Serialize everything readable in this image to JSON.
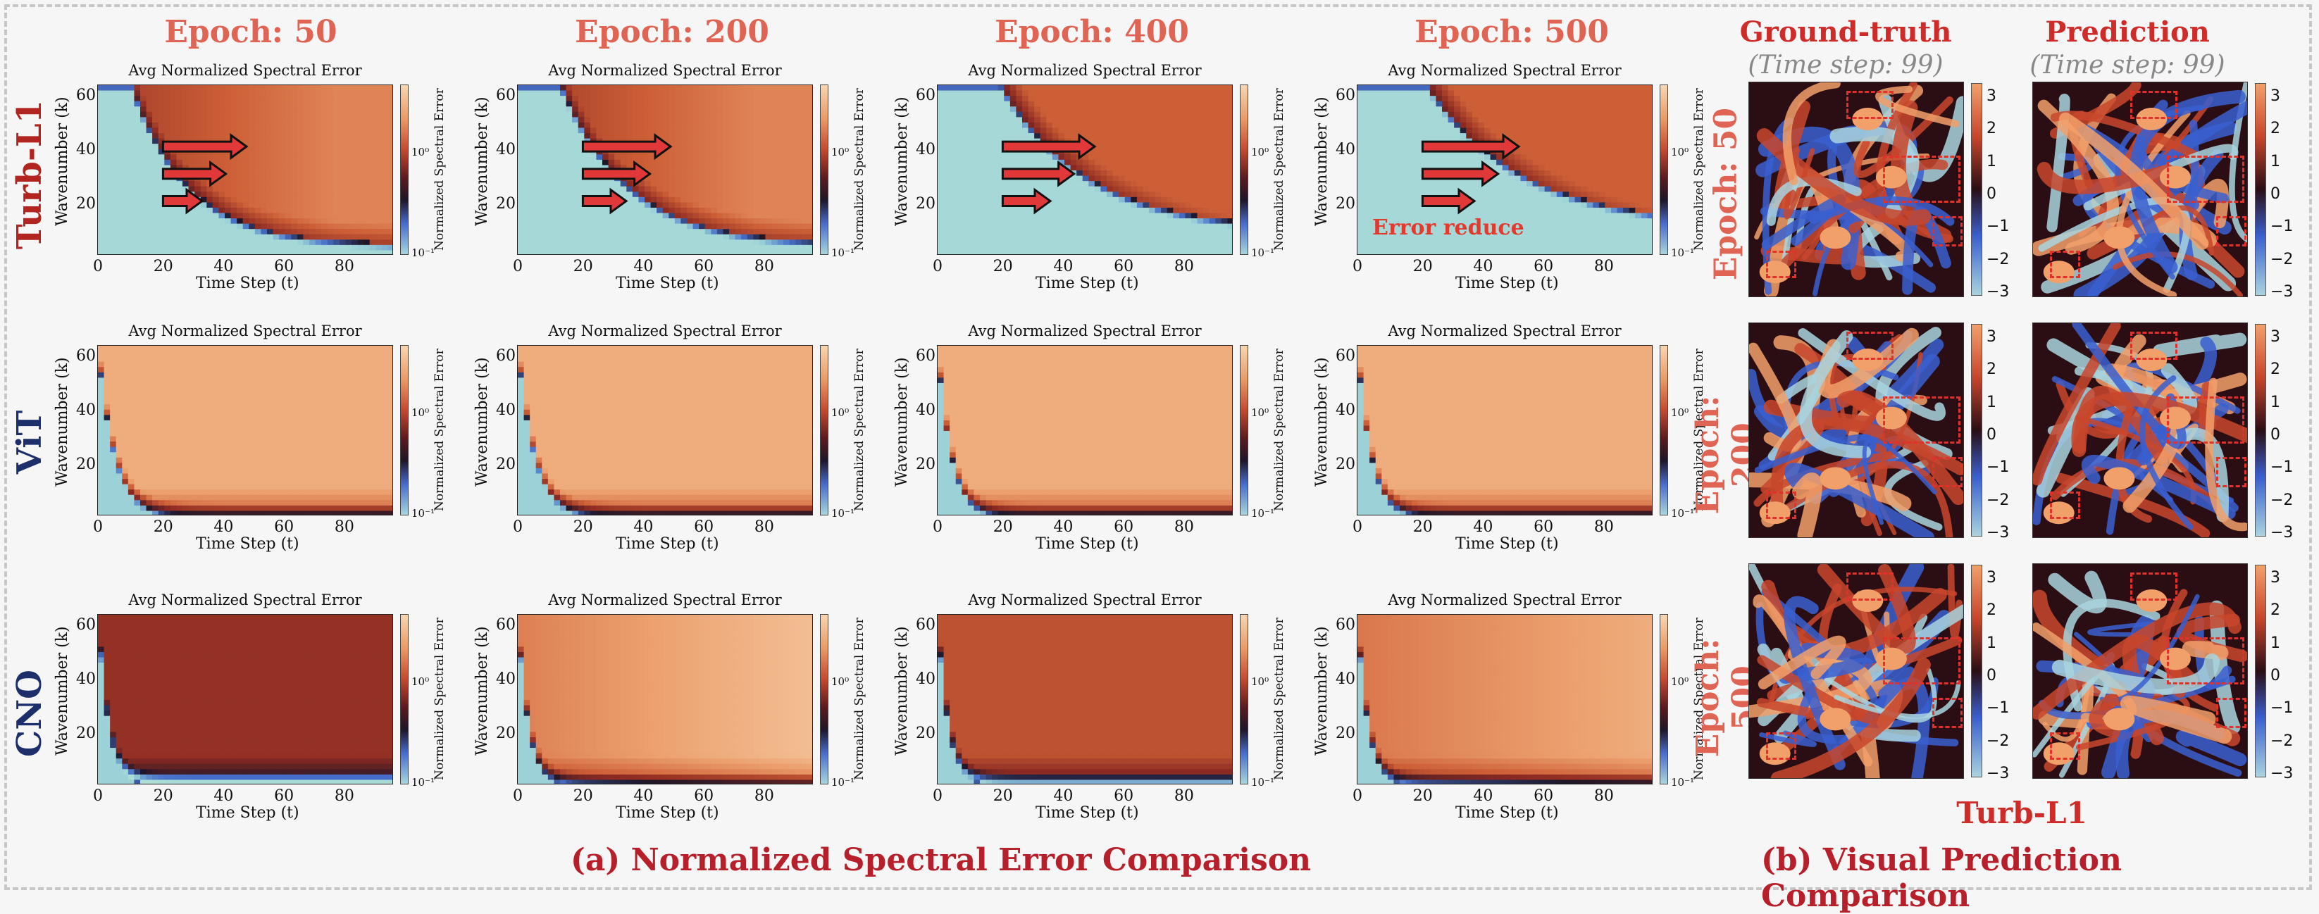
{
  "epochs": [
    "Epoch: 50",
    "Epoch: 200",
    "Epoch: 400",
    "Epoch: 500"
  ],
  "models": [
    {
      "name": "Turb-L1",
      "color": "#b2241f"
    },
    {
      "name": "ViT",
      "color": "#1c2f6b"
    },
    {
      "name": "CNO",
      "color": "#1c2f6b"
    }
  ],
  "chart_data": {
    "type": "heatmap",
    "title": "Avg Normalized Spectral Error",
    "xlabel": "Time Step (t)",
    "ylabel": "Wavenumber (k)",
    "colorbar_label": "Normalized Spectral Error",
    "colorbar_ticks": [
      "10⁰",
      "10⁻¹"
    ],
    "xlim": [
      0,
      98
    ],
    "ylim": [
      1,
      64
    ],
    "xticks": [
      "0",
      "20",
      "40",
      "60",
      "80"
    ],
    "yticks": [
      "20",
      "40",
      "60"
    ],
    "panels": [
      {
        "model": "Turb-L1",
        "epoch": 50,
        "boundary_k_at_t0": 64,
        "boundary_t_at_k64": 20,
        "boundary_k_at_t98": 5
      },
      {
        "model": "Turb-L1",
        "epoch": 200,
        "boundary_k_at_t0": 64,
        "boundary_t_at_k64": 26,
        "boundary_k_at_t98": 5
      },
      {
        "model": "Turb-L1",
        "epoch": 400,
        "boundary_k_at_t0": 64,
        "boundary_t_at_k64": 38,
        "boundary_k_at_t98": 10
      },
      {
        "model": "Turb-L1",
        "epoch": 500,
        "boundary_k_at_t0": 64,
        "boundary_t_at_k64": 42,
        "boundary_k_at_t98": 12
      },
      {
        "model": "ViT",
        "epoch": 50,
        "boundary_k_at_t0": 64,
        "boundary_t_at_k64": 4,
        "boundary_k_at_t98": 1
      },
      {
        "model": "ViT",
        "epoch": 200,
        "boundary_k_at_t0": 64,
        "boundary_t_at_k64": 4,
        "boundary_k_at_t98": 1
      },
      {
        "model": "ViT",
        "epoch": 400,
        "boundary_k_at_t0": 64,
        "boundary_t_at_k64": 3,
        "boundary_k_at_t98": 1
      },
      {
        "model": "ViT",
        "epoch": 500,
        "boundary_k_at_t0": 64,
        "boundary_t_at_k64": 3,
        "boundary_k_at_t98": 1
      },
      {
        "model": "CNO",
        "epoch": 50,
        "boundary_k_at_t0": 64,
        "boundary_t_at_k64": 2,
        "boundary_k_at_t98": 1
      },
      {
        "model": "CNO",
        "epoch": 200,
        "boundary_k_at_t0": 64,
        "boundary_t_at_k64": 2,
        "boundary_k_at_t98": 1
      },
      {
        "model": "CNO",
        "epoch": 400,
        "boundary_k_at_t0": 64,
        "boundary_t_at_k64": 2,
        "boundary_k_at_t98": 1
      },
      {
        "model": "CNO",
        "epoch": 500,
        "boundary_k_at_t0": 64,
        "boundary_t_at_k64": 2,
        "boundary_k_at_t98": 1
      }
    ]
  },
  "annotation": "Error reduce",
  "caption_a": "(a) Normalized Spectral Error Comparison",
  "caption_b": "(b) Visual Prediction Comparison",
  "visual": {
    "col_titles": [
      "Ground-truth",
      "Prediction"
    ],
    "col_subtitles": [
      "(Time step: 99)",
      "(Time step: 99)"
    ],
    "row_labels": [
      "Epoch: 50",
      "Epoch: 200",
      "Epoch: 500"
    ],
    "model_label": "Turb-L1",
    "colorbar_ticks": [
      "3",
      "2",
      "1",
      "0",
      "−1",
      "−2",
      "−3"
    ],
    "colormap": [
      "#a9d3de",
      "#3a5fcf",
      "#2a0e14",
      "#c8462c",
      "#f2a06a"
    ]
  }
}
